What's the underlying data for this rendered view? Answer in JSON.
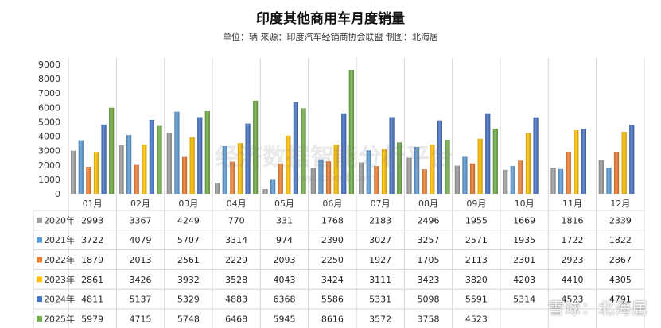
{
  "title": "印度其他商用车月度销量",
  "subtitle": "单位：辆 来源：印度汽车经销商协会联盟 制图：北海居",
  "watermark_center": "经济数据智能分析平台",
  "watermark_center_sub": "www.topedb.com",
  "watermark_corner": "雪球：北海居",
  "chart_data": {
    "type": "bar",
    "categories": [
      "01月",
      "02月",
      "03月",
      "04月",
      "05月",
      "06月",
      "07月",
      "08月",
      "09月",
      "10月",
      "11月",
      "12月"
    ],
    "y_ticks": [
      "0",
      "1000",
      "2000",
      "3000",
      "4000",
      "5000",
      "6000",
      "7000",
      "8000",
      "9000"
    ],
    "ylim": [
      0,
      9000
    ],
    "grid": false,
    "legend": "table-rows-below",
    "series": [
      {
        "name": "2020年",
        "color": "#9e9e9e",
        "values": [
          2993,
          3367,
          4249,
          770,
          331,
          1768,
          2183,
          2496,
          1955,
          1669,
          1816,
          2339
        ],
        "labels": [
          "2993",
          "3367",
          "4249",
          "770",
          "331",
          "1768",
          "2183",
          "2496",
          "1955",
          "1669",
          "1816",
          "2339"
        ]
      },
      {
        "name": "2021年",
        "color": "#5b9bd5",
        "values": [
          3722,
          4079,
          5707,
          3314,
          974,
          2390,
          3027,
          3257,
          2571,
          1935,
          1722,
          1822
        ],
        "labels": [
          "3722",
          "4079",
          "5707",
          "3314",
          "974",
          "2390",
          "3027",
          "3257",
          "2571",
          "1935",
          "1722",
          "1822"
        ]
      },
      {
        "name": "2022年",
        "color": "#ed7d31",
        "values": [
          1879,
          2013,
          2561,
          2229,
          2093,
          2250,
          1927,
          1705,
          2113,
          2301,
          2923,
          2867
        ],
        "labels": [
          "1879",
          "2013",
          "2561",
          "2229",
          "2093",
          "2250",
          "1927",
          "1705",
          "2113",
          "2301",
          "2923",
          "2867"
        ]
      },
      {
        "name": "2023年",
        "color": "#ffc000",
        "values": [
          2861,
          3426,
          3932,
          3528,
          4043,
          3424,
          3111,
          3423,
          3820,
          4203,
          4410,
          4305
        ],
        "labels": [
          "2861",
          "3426",
          "3932",
          "3528",
          "4043",
          "3424",
          "3111",
          "3423",
          "3820",
          "4203",
          "4410",
          "4305"
        ]
      },
      {
        "name": "2024年",
        "color": "#4472c4",
        "values": [
          4811,
          5137,
          5329,
          4883,
          6368,
          5586,
          5331,
          5098,
          5591,
          5314,
          4523,
          4791
        ],
        "labels": [
          "4811",
          "5137",
          "5329",
          "4883",
          "6368",
          "5586",
          "5331",
          "5098",
          "5591",
          "5314",
          "4523",
          "4791"
        ]
      },
      {
        "name": "2025年",
        "color": "#70ad47",
        "values": [
          5979,
          4715,
          5748,
          6468,
          5945,
          8616,
          3572,
          3758,
          4523,
          null,
          null,
          null
        ],
        "labels": [
          "5979",
          "4715",
          "5748",
          "6468",
          "5945",
          "8616",
          "3572",
          "3758",
          "4523",
          "",
          "",
          ""
        ]
      }
    ]
  }
}
